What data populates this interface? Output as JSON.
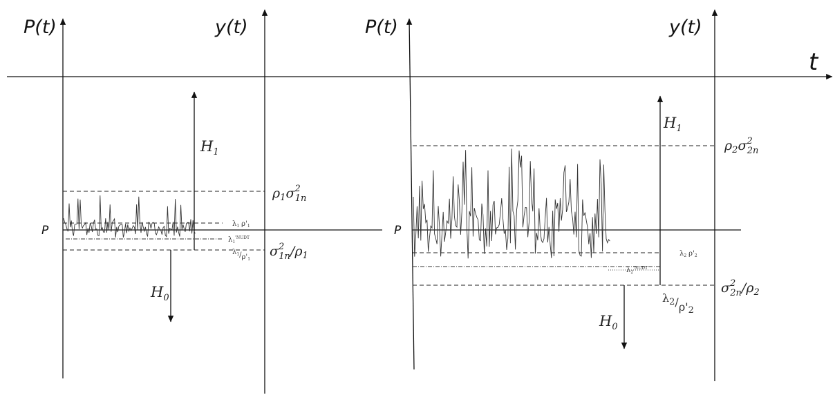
{
  "axes": {
    "time": "t",
    "left_power": "P(t)",
    "left_output": "y(t)",
    "right_power": "P(t)",
    "right_output": "y(t)"
  },
  "left_panel": {
    "level": "P",
    "hypothesis_up": {
      "main": "H",
      "sub": "1"
    },
    "hypothesis_down": {
      "main": "H",
      "sub": "0"
    },
    "upper_threshold": {
      "rho": "ρ",
      "rho_sub": "1",
      "sigma": "σ",
      "sigma_sup": "2",
      "sigma_sub": "1n"
    },
    "lower_threshold": {
      "sigma": "σ",
      "sigma_sup": "2",
      "sigma_sub": "1n",
      "slash": "/",
      "rho": "ρ",
      "rho_sub": "1"
    },
    "lambda_rho": {
      "lambda": "λ",
      "lambda_sub": "1",
      "rho": "ρ'",
      "rho_sub": "1"
    },
    "lambda_nudt": {
      "lambda": "λ",
      "sub": "1",
      "sup": "'NUDT"
    },
    "lambda_over_rho": {
      "lambda": "λ",
      "lambda_sub": "1",
      "slash": "/",
      "rho": "ρ'",
      "rho_sub": "1"
    }
  },
  "right_panel": {
    "level": "P",
    "hypothesis_up": {
      "main": "H",
      "sub": "1"
    },
    "hypothesis_down": {
      "main": "H",
      "sub": "0"
    },
    "upper_threshold": {
      "rho": "ρ",
      "rho_sub": "2",
      "sigma": "σ",
      "sigma_sup": "2",
      "sigma_sub": "2n"
    },
    "lower_threshold": {
      "sigma": "σ",
      "sigma_sup": "2",
      "sigma_sub": "2n",
      "slash": "/",
      "rho": "ρ",
      "rho_sub": "2"
    },
    "lambda_rho": {
      "lambda": "λ",
      "lambda_sub": "2",
      "rho": "ρ'",
      "rho_sub": "2"
    },
    "lambda_nudt": {
      "lambda": "λ",
      "sub": "2",
      "sup": "'NUDT"
    },
    "lambda_over_rho": {
      "lambda": "λ",
      "lambda_sub": "2",
      "slash": "/",
      "rho": "ρ'",
      "rho_sub": "2"
    }
  }
}
